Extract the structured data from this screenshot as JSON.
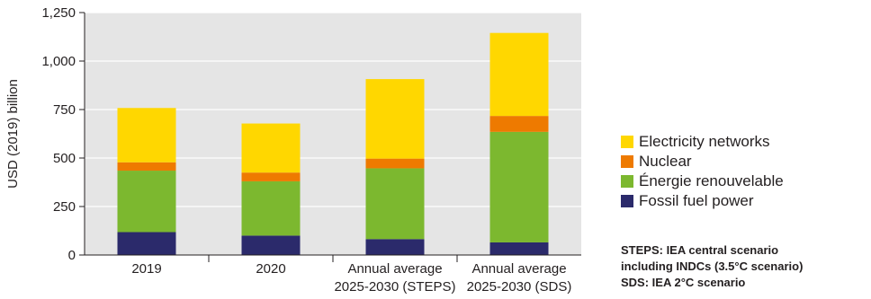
{
  "chart_data": {
    "type": "bar",
    "stacked": true,
    "ylabel": "USD (2019) billion",
    "ylim": [
      0,
      1250
    ],
    "yticks": [
      0,
      250,
      500,
      750,
      1000,
      1250
    ],
    "ytick_labels": [
      "0",
      "250",
      "500",
      "750",
      "1,000",
      "1,250"
    ],
    "grid": true,
    "legend_position": "right",
    "categories": [
      [
        "2019"
      ],
      [
        "2020"
      ],
      [
        "Annual average",
        "2025-2030 (STEPS)"
      ],
      [
        "Annual average",
        "2025-2030 (SDS)"
      ]
    ],
    "series": [
      {
        "name": "Fossil fuel power",
        "color": "#2b2a6b",
        "values": [
          118,
          100,
          82,
          65
        ]
      },
      {
        "name": "Énergie renouvelable",
        "color": "#7cb82f",
        "values": [
          317,
          280,
          365,
          570
        ]
      },
      {
        "name": "Nuclear",
        "color": "#ee7a00",
        "values": [
          43,
          45,
          50,
          82
        ]
      },
      {
        "name": "Electricity networks",
        "color": "#ffd700",
        "values": [
          280,
          253,
          410,
          428
        ]
      }
    ]
  },
  "notes": [
    "STEPS: IEA central scenario",
    "including INDCs (3.5°C scenario)",
    "SDS: IEA 2°C scenario"
  ]
}
